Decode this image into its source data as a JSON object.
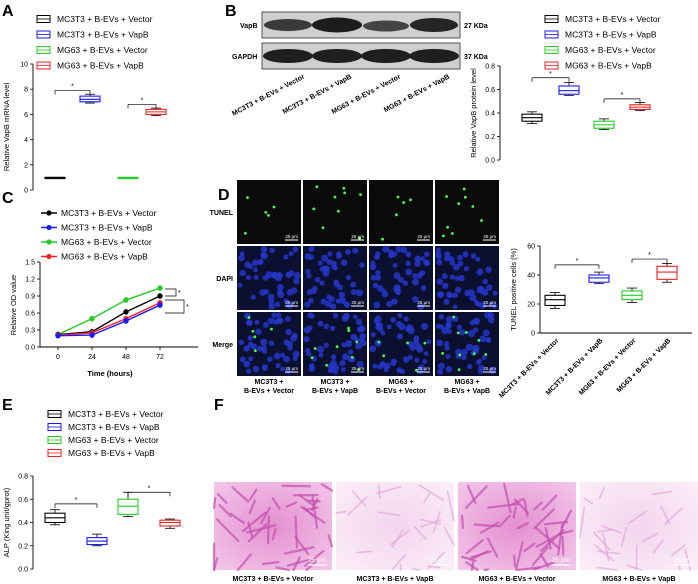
{
  "panels": {
    "A": {
      "letter": "A",
      "legend": [
        "MC3T3 + B-EVs + Vector",
        "MC3T3 + B-EVs + VapB",
        "MG63 + B-EVs + Vector",
        "MG63 + B-EVs + VapB"
      ],
      "ylabel": "Relative VapB mRNA level",
      "yticks": [
        "0",
        "2",
        "4",
        "6",
        "8",
        "10"
      ],
      "star": "*"
    },
    "B": {
      "letter": "B",
      "blot_rows": [
        "VapB",
        "GAPDH"
      ],
      "blot_sizes": [
        "27 KDa",
        "37 KDa"
      ],
      "lanes": [
        "MC3T3 + B-EVs + Vector",
        "MC3T3 + B-EVs + VapB",
        "MG63 + B-EVs + Vector",
        "MG63 + B-EVs + VapB"
      ],
      "legend": [
        "MC3T3 + B-EVs + Vector",
        "MC3T3 + B-EVs + VapB",
        "MG63 + B-EVs + Vector",
        "MG63 + B-EVs + VapB"
      ],
      "ylabel": "Relative VapB protein level",
      "yticks": [
        "0.0",
        "0.2",
        "0.4",
        "0.6",
        "0.8"
      ],
      "star": "*"
    },
    "C": {
      "letter": "C",
      "legend": [
        "MC3T3 + B-EVs + Vector",
        "MC3T3 + B-EVs + VapB",
        "MG63 + B-EVs + Vector",
        "MG63 + B-EVs + VapB"
      ],
      "ylabel": "Relative OD value",
      "xlabel": "Time (hours)",
      "yticks": [
        "0.0",
        "0.3",
        "0.6",
        "0.9",
        "1.2",
        "1.5"
      ],
      "xticks": [
        "0",
        "24",
        "48",
        "72"
      ],
      "star": "*"
    },
    "D": {
      "letter": "D",
      "rows": [
        "TUNEL",
        "DAPI",
        "Merge"
      ],
      "cols": [
        [
          "MC3T3 +",
          "B-EVs + Vector"
        ],
        [
          "MC3T3 +",
          "B-EVs + VapB"
        ],
        [
          "MG63 +",
          "B-EVs + Vector"
        ],
        [
          "MG63 +",
          "B-EVs + VapB"
        ]
      ],
      "scale": "25 μm",
      "ylabel": "TUNEL positive cells (%)",
      "yticks": [
        "0",
        "20",
        "40",
        "60"
      ],
      "xcats": [
        "MC3T3 + B-EVs + Vector",
        "MC3T3 + B-EVs + VapB",
        "MG63 + B-EVs + Vector",
        "MG63 + B-EVs + VapB"
      ],
      "star": "*"
    },
    "E": {
      "letter": "E",
      "legend": [
        "MC3T3 + B-EVs + Vector",
        "MC3T3 + B-EVs + VapB",
        "MG63 + B-EVs + Vector",
        "MG63 + B-EVs + VapB"
      ],
      "ylabel": "ALP (King unit/gprot)",
      "yticks": [
        "0.0",
        "0.2",
        "0.4",
        "0.6",
        "0.8"
      ],
      "star": "*"
    },
    "F": {
      "letter": "F",
      "captions": [
        "MC3T3 + B-EVs + Vector",
        "MC3T3 + B-EVs + VapB",
        "MG63 + B-EVs + Vector",
        "MG63 + B-EVs + VapB"
      ],
      "scale": "25 μm"
    }
  },
  "colors": {
    "g1": "#000000",
    "g2": "#1a1aff",
    "g3": "#22cc22",
    "g4": "#ee2222"
  },
  "chart_data": [
    {
      "panel": "A",
      "type": "box",
      "categories": [
        "MC3T3 + B-EVs + Vector",
        "MC3T3 + B-EVs + VapB",
        "MG63 + B-EVs + Vector",
        "MG63 + B-EVs + VapB"
      ],
      "boxes": [
        {
          "min": 1.0,
          "q1": 1.0,
          "med": 1.0,
          "q3": 1.0,
          "max": 1.0
        },
        {
          "min": 6.9,
          "q1": 7.0,
          "med": 7.2,
          "q3": 7.45,
          "max": 7.6
        },
        {
          "min": 1.0,
          "q1": 1.0,
          "med": 1.0,
          "q3": 1.0,
          "max": 1.0
        },
        {
          "min": 5.9,
          "q1": 6.0,
          "med": 6.2,
          "q3": 6.4,
          "max": 6.5
        }
      ],
      "ylim": [
        0,
        10
      ]
    },
    {
      "panel": "B",
      "type": "box",
      "categories": [
        "MC3T3 + B-EVs + Vector",
        "MC3T3 + B-EVs + VapB",
        "MG63 + B-EVs + Vector",
        "MG63 + B-EVs + VapB"
      ],
      "boxes": [
        {
          "min": 0.31,
          "q1": 0.33,
          "med": 0.36,
          "q3": 0.39,
          "max": 0.41
        },
        {
          "min": 0.55,
          "q1": 0.56,
          "med": 0.59,
          "q3": 0.63,
          "max": 0.66
        },
        {
          "min": 0.26,
          "q1": 0.27,
          "med": 0.3,
          "q3": 0.33,
          "max": 0.35
        },
        {
          "min": 0.42,
          "q1": 0.43,
          "med": 0.45,
          "q3": 0.47,
          "max": 0.49
        }
      ],
      "ylim": [
        0,
        0.8
      ]
    },
    {
      "panel": "C",
      "type": "line",
      "x": [
        0,
        24,
        48,
        72
      ],
      "series": [
        {
          "name": "MC3T3 + B-EVs + Vector",
          "values": [
            0.22,
            0.27,
            0.62,
            0.9
          ]
        },
        {
          "name": "MC3T3 + B-EVs + VapB",
          "values": [
            0.2,
            0.21,
            0.46,
            0.74
          ]
        },
        {
          "name": "MG63 + B-EVs + Vector",
          "values": [
            0.22,
            0.5,
            0.83,
            1.04
          ]
        },
        {
          "name": "MG63 + B-EVs + VapB",
          "values": [
            0.21,
            0.25,
            0.5,
            0.78
          ]
        }
      ],
      "ylim": [
        0,
        1.5
      ]
    },
    {
      "panel": "D",
      "type": "box",
      "categories": [
        "MC3T3 + B-EVs + Vector",
        "MC3T3 + B-EVs + VapB",
        "MG63 + B-EVs + Vector",
        "MG63 + B-EVs + VapB"
      ],
      "boxes": [
        {
          "min": 17,
          "q1": 19,
          "med": 23,
          "q3": 26,
          "max": 28
        },
        {
          "min": 34,
          "q1": 35,
          "med": 38,
          "q3": 40,
          "max": 42
        },
        {
          "min": 21,
          "q1": 23,
          "med": 26,
          "q3": 29,
          "max": 31
        },
        {
          "min": 35,
          "q1": 37,
          "med": 42,
          "q3": 46,
          "max": 48
        }
      ],
      "ylim": [
        0,
        60
      ]
    },
    {
      "panel": "E",
      "type": "box",
      "categories": [
        "MC3T3 + B-EVs + Vector",
        "MC3T3 + B-EVs + VapB",
        "MG63 + B-EVs + Vector",
        "MG63 + B-EVs + VapB"
      ],
      "boxes": [
        {
          "min": 0.38,
          "q1": 0.4,
          "med": 0.44,
          "q3": 0.48,
          "max": 0.51
        },
        {
          "min": 0.2,
          "q1": 0.21,
          "med": 0.24,
          "q3": 0.27,
          "max": 0.3
        },
        {
          "min": 0.45,
          "q1": 0.47,
          "med": 0.54,
          "q3": 0.6,
          "max": 0.66
        },
        {
          "min": 0.35,
          "q1": 0.37,
          "med": 0.4,
          "q3": 0.42,
          "max": 0.43
        }
      ],
      "ylim": [
        0,
        0.8
      ]
    }
  ]
}
